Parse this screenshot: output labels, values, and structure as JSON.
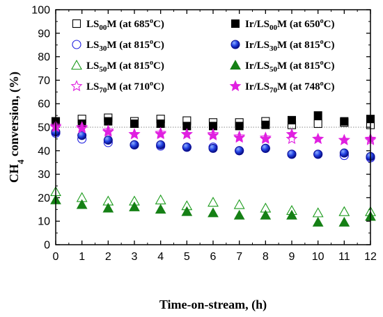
{
  "chart_data": {
    "type": "scatter",
    "xlabel": "Time-on-stream, (h)",
    "ylabel": {
      "pre": "CH",
      "sub": "4",
      "post": " conversion, (%)"
    },
    "xlim": [
      0,
      12
    ],
    "ylim": [
      0,
      100
    ],
    "xticks": [
      0,
      1,
      2,
      3,
      4,
      5,
      6,
      7,
      8,
      9,
      10,
      11,
      12
    ],
    "yticks": [
      0,
      10,
      20,
      30,
      40,
      50,
      60,
      70,
      80,
      90,
      100
    ],
    "grid": false,
    "reference_line": {
      "y": 50,
      "style": "dotted",
      "color": "#888888"
    },
    "legend_placement": "top",
    "x": [
      0,
      1,
      2,
      3,
      4,
      5,
      6,
      7,
      8,
      9,
      10,
      11,
      12
    ],
    "series": [
      {
        "name": {
          "a": "LS",
          "sub": "00",
          "b": "M (at 685",
          "sup": "o",
          "c": "C)"
        },
        "marker": "square-open",
        "color": "#000000",
        "values": [
          52.5,
          53.5,
          54.0,
          52.5,
          53.5,
          52.8,
          52.0,
          52.0,
          52.5,
          51.0,
          51.5,
          52.0,
          51.0
        ]
      },
      {
        "name": {
          "a": "Ir/LS",
          "sub": "00",
          "b": "M (at 650",
          "sup": "o",
          "c": "C)"
        },
        "marker": "square-filled",
        "color": "#000000",
        "values": [
          52.5,
          51.5,
          52.5,
          51.5,
          51.5,
          50.5,
          50.5,
          50.5,
          51.0,
          53.0,
          55.0,
          52.5,
          53.5
        ]
      },
      {
        "name": {
          "a": "LS",
          "sub": "30",
          "b": "M (at 815",
          "sup": "o",
          "c": "C)"
        },
        "marker": "circle-open",
        "color": "#1f1fe0",
        "values": [
          47.5,
          45.0,
          43.5,
          42.5,
          42.0,
          41.5,
          41.5,
          40.0,
          41.0,
          38.5,
          38.5,
          38.0,
          37.0
        ]
      },
      {
        "name": {
          "a": "Ir/LS",
          "sub": "30",
          "b": "M (at 815",
          "sup": "o",
          "c": "C)"
        },
        "marker": "circle-filled",
        "color": "#1f1fe0",
        "values": [
          48.0,
          46.5,
          44.5,
          42.5,
          42.5,
          41.5,
          41.0,
          40.0,
          41.0,
          38.5,
          38.5,
          39.0,
          37.5
        ]
      },
      {
        "name": {
          "a": "LS",
          "sub": "50",
          "b": "M (at 815",
          "sup": "o",
          "c": "C)"
        },
        "marker": "triangle-open",
        "color": "#1a9a1a",
        "values": [
          22.5,
          20.0,
          18.5,
          18.5,
          19.0,
          16.5,
          18.0,
          17.0,
          15.5,
          14.5,
          13.5,
          14.0,
          14.0
        ]
      },
      {
        "name": {
          "a": "Ir/LS",
          "sub": "50",
          "b": "M (at 815",
          "sup": "o",
          "c": "C)"
        },
        "marker": "triangle-filled",
        "color": "#158015",
        "values": [
          19.0,
          17.0,
          15.5,
          16.0,
          15.0,
          14.0,
          13.5,
          12.5,
          12.5,
          12.5,
          9.5,
          9.5,
          12.0
        ]
      },
      {
        "name": {
          "a": "LS",
          "sub": "70",
          "b": "M (at 710",
          "sup": "o",
          "c": "C)"
        },
        "marker": "star-open",
        "color": "#e020e0",
        "values": [
          50.5,
          50.0,
          48.5,
          47.0,
          47.5,
          47.0,
          47.0,
          46.0,
          45.5,
          45.0,
          45.0,
          44.5,
          44.5
        ]
      },
      {
        "name": {
          "a": "Ir/LS",
          "sub": "70",
          "b": "M (at 748",
          "sup": "o",
          "c": "C)"
        },
        "marker": "star-filled",
        "color": "#e020e0",
        "values": [
          50.0,
          49.5,
          48.0,
          47.0,
          47.0,
          47.0,
          46.5,
          45.5,
          45.0,
          47.0,
          45.0,
          44.5,
          45.0
        ]
      }
    ]
  }
}
